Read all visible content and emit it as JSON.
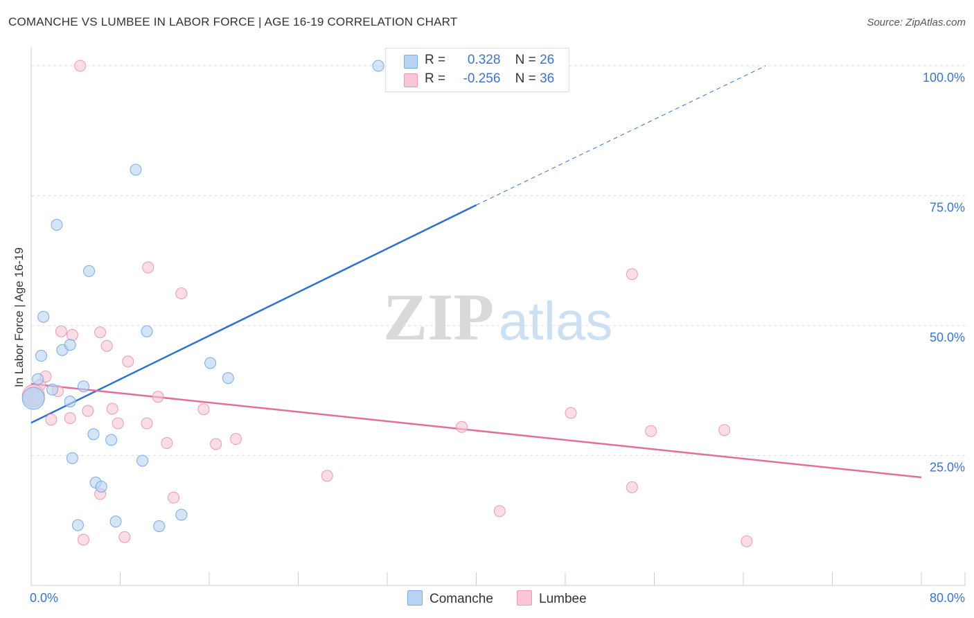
{
  "title": "COMANCHE VS LUMBEE IN LABOR FORCE | AGE 16-19 CORRELATION CHART",
  "source": "Source: ZipAtlas.com",
  "watermark": {
    "zip": "ZIP",
    "atlas": "atlas"
  },
  "legend": {
    "comanche": {
      "r_label": "R =",
      "r_value": "0.328",
      "n_label": "N =",
      "n_value": "26"
    },
    "lumbee": {
      "r_label": "R =",
      "r_value": "-0.256",
      "n_label": "N =",
      "n_value": "36"
    }
  },
  "colors": {
    "comanche_fill": "#b8d3f4",
    "comanche_stroke": "#7aaae6",
    "comanche_line": "#2e72cf",
    "lumbee_fill": "#f9c7d5",
    "lumbee_stroke": "#ec9ab3",
    "lumbee_line": "#e36e9a",
    "tick_text": "#3a74c9",
    "grid": "#dddddd"
  },
  "chart_data": {
    "type": "scatter",
    "title": "COMANCHE VS LUMBEE IN LABOR FORCE | AGE 16-19 CORRELATION CHART",
    "xlabel": "",
    "ylabel": "In Labor Force | Age 16-19",
    "xlim": [
      0,
      80
    ],
    "ylim": [
      0,
      102
    ],
    "x_tick_labels": [
      "0.0%",
      "80.0%"
    ],
    "y_ticks": [
      25,
      50,
      75,
      100
    ],
    "y_tick_labels": [
      "25.0%",
      "50.0%",
      "75.0%",
      "100.0%"
    ],
    "series": [
      {
        "name": "Comanche",
        "r": 0.328,
        "n": 26,
        "trend": {
          "x": [
            0,
            40
          ],
          "y": [
            31.3,
            73.2
          ],
          "dashed_to": [
            66,
            100
          ]
        },
        "points": [
          [
            0.6,
            39.7
          ],
          [
            1.1,
            51.7
          ],
          [
            2.3,
            69.4
          ],
          [
            0.9,
            44.2
          ],
          [
            1.9,
            37.7
          ],
          [
            2.8,
            45.3
          ],
          [
            3.5,
            35.4
          ],
          [
            3.5,
            46.3
          ],
          [
            4.7,
            38.3
          ],
          [
            5.2,
            60.5
          ],
          [
            5.6,
            29.1
          ],
          [
            7.2,
            28.0
          ],
          [
            9.4,
            80.0
          ],
          [
            10.4,
            48.9
          ],
          [
            16.1,
            42.8
          ],
          [
            17.7,
            39.9
          ],
          [
            3.7,
            24.5
          ],
          [
            5.8,
            19.8
          ],
          [
            6.3,
            19.0
          ],
          [
            4.2,
            11.6
          ],
          [
            7.6,
            12.3
          ],
          [
            10.0,
            24.0
          ],
          [
            11.5,
            11.4
          ],
          [
            13.5,
            13.6
          ],
          [
            31.2,
            100.0
          ],
          [
            0.2,
            36.0
          ]
        ]
      },
      {
        "name": "Lumbee",
        "r": -0.256,
        "n": 36,
        "trend": {
          "x": [
            0,
            80
          ],
          "y": [
            38.8,
            20.8
          ]
        },
        "points": [
          [
            4.4,
            100.0
          ],
          [
            0.8,
            38.6
          ],
          [
            1.3,
            40.2
          ],
          [
            1.8,
            31.9
          ],
          [
            2.4,
            37.4
          ],
          [
            2.7,
            48.9
          ],
          [
            3.5,
            32.2
          ],
          [
            3.7,
            48.2
          ],
          [
            5.1,
            33.6
          ],
          [
            6.2,
            48.7
          ],
          [
            6.8,
            46.1
          ],
          [
            7.3,
            34.0
          ],
          [
            7.8,
            31.2
          ],
          [
            8.7,
            43.1
          ],
          [
            10.5,
            61.2
          ],
          [
            10.4,
            31.2
          ],
          [
            11.4,
            36.3
          ],
          [
            12.2,
            27.4
          ],
          [
            13.5,
            56.2
          ],
          [
            15.5,
            33.9
          ],
          [
            16.6,
            27.2
          ],
          [
            18.4,
            28.2
          ],
          [
            6.2,
            17.6
          ],
          [
            4.7,
            8.8
          ],
          [
            8.4,
            9.3
          ],
          [
            12.8,
            16.9
          ],
          [
            26.6,
            21.1
          ],
          [
            38.7,
            30.5
          ],
          [
            42.1,
            14.3
          ],
          [
            48.5,
            33.2
          ],
          [
            54.0,
            59.9
          ],
          [
            55.7,
            29.7
          ],
          [
            54.0,
            18.9
          ],
          [
            62.3,
            29.9
          ],
          [
            64.3,
            8.5
          ],
          [
            0.2,
            36.5
          ]
        ]
      }
    ]
  }
}
